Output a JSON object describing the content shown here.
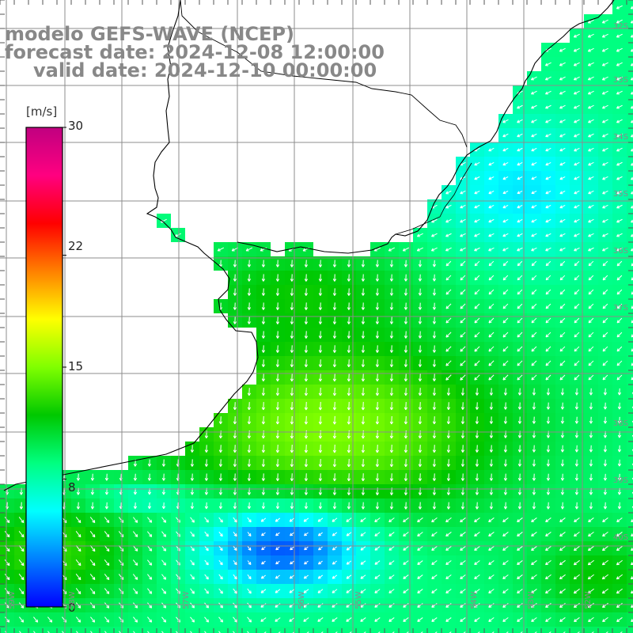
{
  "title": {
    "line1": "modelo GEFS-WAVE (NCEP)",
    "line2": "forecast date: 2024-12-08 12:00:00",
    "line3": "valid date: 2024-12-10 00:00:00"
  },
  "colorbar": {
    "unit": "[m/s]",
    "min": 0,
    "max": 30,
    "ticks": [
      "30",
      "22",
      "15",
      "8",
      "0"
    ],
    "tick_values": [
      30,
      22,
      15,
      8,
      0
    ],
    "stops": [
      "#0000ff",
      "#0080ff",
      "#00ffff",
      "#00ff80",
      "#00c800",
      "#80ff00",
      "#ffff00",
      "#ff8000",
      "#ff0000",
      "#ff0080",
      "#c00080"
    ]
  },
  "grid_labels": {
    "latitudes": [
      "32S",
      "33S",
      "34S",
      "35S",
      "36S",
      "37S",
      "38S",
      "39S",
      "40S"
    ],
    "longitudes": [
      "59W",
      "58W",
      "57W",
      "56W",
      "55W",
      "54W",
      "53W",
      "52W"
    ]
  },
  "colors": {
    "background": "#ffffff",
    "coast": "#000000",
    "grid": "#8c8c8c",
    "arrows": "#ffffff",
    "title": "#888888"
  }
}
